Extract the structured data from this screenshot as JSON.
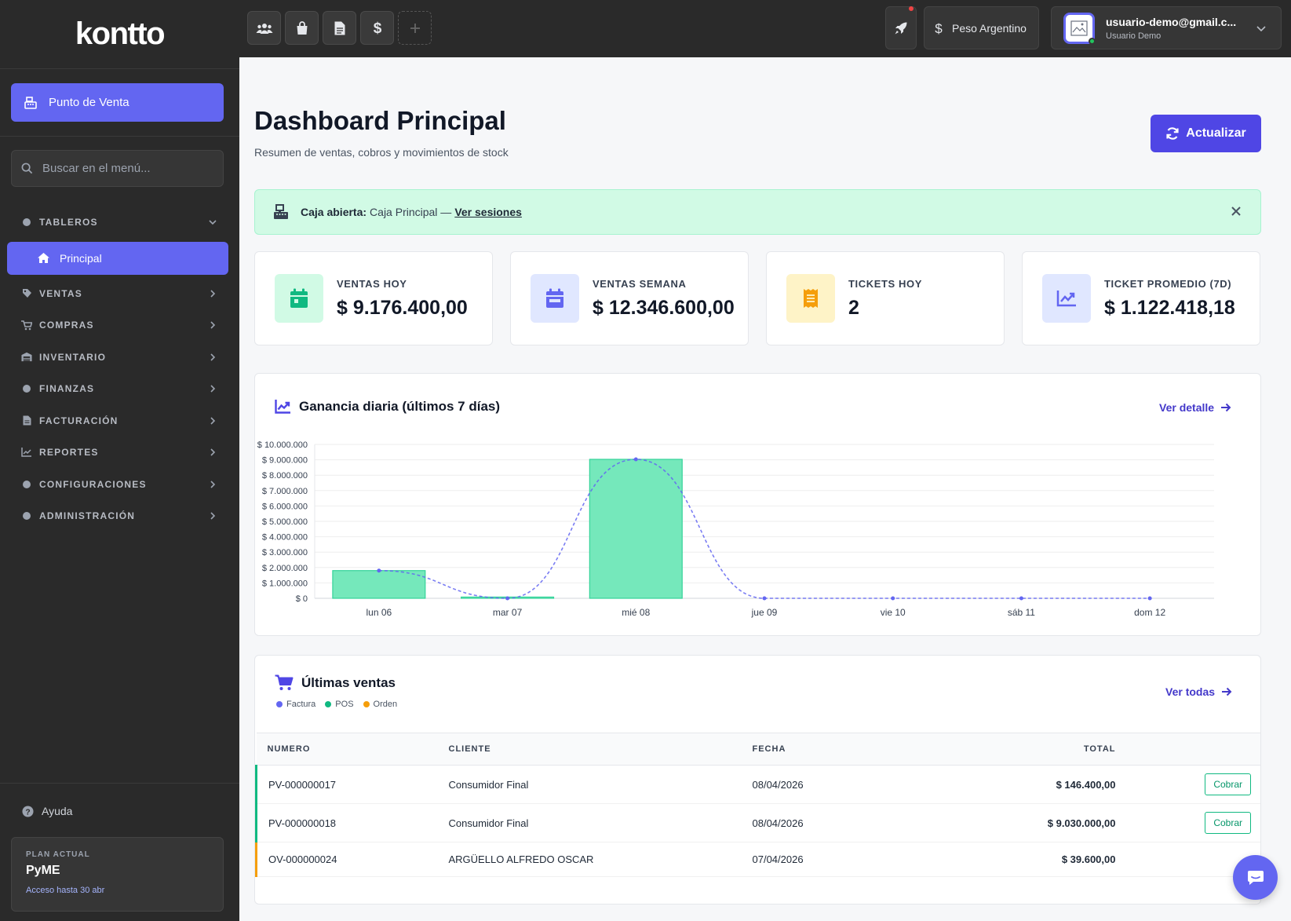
{
  "brand": {
    "logo": "kontto"
  },
  "sidebar": {
    "pos_button": "Punto de Venta",
    "search_placeholder": "Buscar en el menú...",
    "sections": [
      {
        "label": "TABLEROS",
        "icon": "dot-icon",
        "expanded": true
      },
      {
        "label": "VENTAS",
        "icon": "tag-icon"
      },
      {
        "label": "COMPRAS",
        "icon": "cart-icon"
      },
      {
        "label": "INVENTARIO",
        "icon": "warehouse-icon"
      },
      {
        "label": "FINANZAS",
        "icon": "dot-icon"
      },
      {
        "label": "FACTURACIÓN",
        "icon": "file-icon"
      },
      {
        "label": "REPORTES",
        "icon": "chart-icon"
      },
      {
        "label": "CONFIGURACIONES",
        "icon": "dot-icon"
      },
      {
        "label": "ADMINISTRACIÓN",
        "icon": "dot-icon"
      }
    ],
    "active_item": "Principal",
    "help": "Ayuda",
    "plan": {
      "label": "PLAN ACTUAL",
      "name": "PyME",
      "access": "Acceso hasta 30 abr"
    }
  },
  "topbar": {
    "quick_buttons": [
      "users-icon",
      "bag-icon",
      "document-icon",
      "dollar-icon",
      "plus-icon"
    ],
    "currency": "Peso Argentino",
    "user_email": "usuario-demo@gmail.c...",
    "user_name": "Usuario Demo"
  },
  "page": {
    "title": "Dashboard Principal",
    "subtitle": "Resumen de ventas, cobros y movimientos de stock",
    "refresh_label": "Actualizar"
  },
  "alert": {
    "bold": "Caja abierta:",
    "text": "Caja Principal —",
    "link": "Ver sesiones"
  },
  "stats": [
    {
      "label": "VENTAS HOY",
      "value": "$ 9.176.400,00",
      "color": "#10b981",
      "bg": "#d1fae5",
      "icon": "calendar-icon"
    },
    {
      "label": "VENTAS SEMANA",
      "value": "$ 12.346.600,00",
      "color": "#6366f1",
      "bg": "#e0e7ff",
      "icon": "calendar-week-icon"
    },
    {
      "label": "TICKETS HOY",
      "value": "2",
      "color": "#f59e0b",
      "bg": "#fef3c7",
      "icon": "receipt-icon"
    },
    {
      "label": "TICKET PROMEDIO (7D)",
      "value": "$ 1.122.418,18",
      "color": "#6366f1",
      "bg": "#e0e7ff",
      "icon": "trend-icon"
    }
  ],
  "chart_card": {
    "title": "Ganancia diaria (últimos 7 días)",
    "link": "Ver detalle"
  },
  "chart_data": {
    "type": "bar",
    "categories": [
      "lun 06",
      "mar 07",
      "mié 08",
      "jue 09",
      "vie 10",
      "sáb 11",
      "dom 12"
    ],
    "series": [
      {
        "type": "bar",
        "values": [
          1800000,
          80000,
          9030000,
          0,
          0,
          0,
          0
        ],
        "color": "#6ee7b7"
      },
      {
        "type": "line",
        "values": [
          1800000,
          0,
          9030000,
          0,
          0,
          0,
          0
        ],
        "color": "#6366f1"
      }
    ],
    "ylim": [
      0,
      10000000
    ],
    "yticks": [
      "$ 0",
      "$ 1.000.000",
      "$ 2.000.000",
      "$ 3.000.000",
      "$ 4.000.000",
      "$ 5.000.000",
      "$ 6.000.000",
      "$ 7.000.000",
      "$ 8.000.000",
      "$ 9.000.000",
      "$ 10.000.000"
    ],
    "grid": true
  },
  "sales": {
    "title": "Últimas ventas",
    "link": "Ver todas",
    "legend": [
      {
        "label": "Factura",
        "color": "#6366f1"
      },
      {
        "label": "POS",
        "color": "#10b981"
      },
      {
        "label": "Orden",
        "color": "#f59e0b"
      }
    ],
    "columns": [
      "NUMERO",
      "CLIENTE",
      "FECHA",
      "TOTAL"
    ],
    "rows": [
      {
        "numero": "PV-000000017",
        "cliente": "Consumidor Final",
        "fecha": "08/04/2026",
        "total": "$ 146.400,00",
        "action": "Cobrar",
        "type_color": "#10b981"
      },
      {
        "numero": "PV-000000018",
        "cliente": "Consumidor Final",
        "fecha": "08/04/2026",
        "total": "$ 9.030.000,00",
        "action": "Cobrar",
        "type_color": "#10b981"
      },
      {
        "numero": "OV-000000024",
        "cliente": "ARGÜELLO ALFREDO OSCAR",
        "fecha": "07/04/2026",
        "total": "$ 39.600,00",
        "action": "",
        "type_color": "#f59e0b"
      }
    ]
  }
}
